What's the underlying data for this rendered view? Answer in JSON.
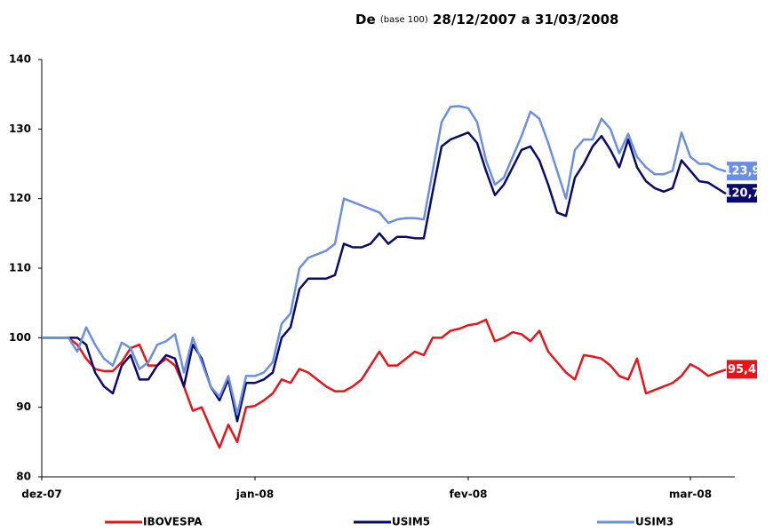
{
  "chart_data": {
    "type": "line",
    "title_parts": [
      "De",
      "(base 100)",
      "28/12/2007 a 31/03/2008"
    ],
    "categories": [
      "dez-07",
      null,
      null,
      null,
      null,
      null,
      null,
      null,
      null,
      null,
      null,
      null,
      null,
      null,
      null,
      null,
      null,
      null,
      null,
      null,
      null,
      null,
      null,
      null,
      "jan-08",
      null,
      null,
      null,
      null,
      null,
      null,
      null,
      null,
      null,
      null,
      null,
      null,
      null,
      null,
      null,
      null,
      null,
      null,
      null,
      null,
      null,
      null,
      null,
      "fev-08",
      null,
      null,
      null,
      null,
      null,
      null,
      null,
      null,
      null,
      null,
      null,
      null,
      null,
      null,
      null,
      null,
      null,
      null,
      null,
      null,
      null,
      null,
      null,
      null,
      "mar-08",
      null,
      null,
      null,
      null
    ],
    "ylim": [
      80,
      140
    ],
    "yticks": [
      80,
      90,
      100,
      110,
      120,
      130,
      140
    ],
    "grid": false,
    "legend": "bottom",
    "series": [
      {
        "name": "IBOVESPA",
        "color": "#e8141b",
        "values": [
          100,
          100,
          100,
          100,
          99,
          97,
          95.5,
          95.2,
          95.2,
          96.5,
          98.5,
          99,
          96,
          96,
          97,
          96,
          93,
          89.5,
          90,
          87,
          84.2,
          87.5,
          85,
          90,
          90.2,
          91,
          92,
          94,
          93.5,
          95.5,
          95,
          94,
          93,
          92.3,
          92.3,
          93,
          94,
          96,
          98,
          96,
          96,
          97,
          98,
          97.5,
          100,
          100,
          101,
          101.3,
          101.8,
          102,
          102.6,
          99.5,
          100,
          100.8,
          100.5,
          99.5,
          101,
          98,
          96.5,
          95,
          94,
          97.5,
          97.3,
          97,
          96,
          94.5,
          94,
          97,
          92,
          92.5,
          93,
          93.5,
          94.5,
          96.2,
          95.5,
          94.5,
          95,
          95.4
        ],
        "value_labels": {
          "77": "95,4"
        }
      },
      {
        "name": "USIM5",
        "color": "#0a0a6e",
        "values": [
          100,
          100,
          100,
          100,
          100,
          99,
          95,
          93,
          92,
          96,
          97.5,
          94,
          94,
          96,
          97.5,
          97,
          93,
          99,
          97,
          93,
          91,
          94,
          88,
          93.5,
          93.5,
          94,
          95,
          100,
          101.5,
          107,
          108.5,
          108.5,
          108.5,
          109,
          113.5,
          113,
          113,
          113.5,
          115,
          113.5,
          114.5,
          114.5,
          114.3,
          114.3,
          121,
          127.5,
          128.5,
          129,
          129.5,
          128,
          124,
          120.5,
          122,
          124.5,
          127,
          127.5,
          125.5,
          122,
          118,
          117.5,
          123,
          125,
          127.5,
          129,
          127,
          124.5,
          128.5,
          124.5,
          122.5,
          121.5,
          121,
          121.5,
          125.5,
          124,
          122.5,
          122.3,
          121.5,
          120.7
        ],
        "value_labels": {
          "77": "120,7"
        }
      },
      {
        "name": "USIM3",
        "color": "#6a8fe0",
        "values": [
          100,
          100,
          100,
          100,
          98,
          101.5,
          99,
          97,
          96,
          99.3,
          98.5,
          95.5,
          96.5,
          99,
          99.5,
          100.5,
          95,
          100,
          96.5,
          93,
          91.5,
          94.5,
          89,
          94.5,
          94.5,
          95,
          96.5,
          102,
          103.5,
          110,
          111.5,
          112,
          112.5,
          113.5,
          120,
          119.5,
          119,
          118.5,
          118,
          116.5,
          117,
          117.2,
          117.2,
          117,
          124,
          131,
          133.2,
          133.3,
          133,
          131,
          125.5,
          122,
          123,
          126,
          129,
          132.5,
          131.5,
          128,
          124,
          120,
          127,
          128.5,
          128.5,
          131.5,
          130,
          126.5,
          129.3,
          126,
          124.5,
          123.5,
          123.5,
          124,
          129.5,
          126,
          125,
          125,
          124.3,
          123.9
        ],
        "value_labels": {
          "77": "123,9"
        }
      }
    ]
  }
}
